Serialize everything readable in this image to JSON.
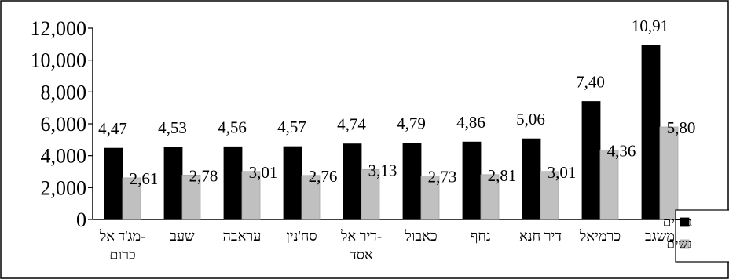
{
  "chart_data": {
    "type": "bar",
    "title": "",
    "xlabel": "",
    "ylabel": "",
    "ylim": [
      0,
      12000
    ],
    "yticks": [
      "0",
      "2,000",
      "4,000",
      "6,000",
      "8,000",
      "10,000",
      "12,000"
    ],
    "grid": false,
    "legend": "right",
    "categories": [
      [
        "מג'ד אל-",
        "כרום"
      ],
      [
        "שעב"
      ],
      [
        "עראבה"
      ],
      [
        "סח'נין"
      ],
      [
        "דיר אל-",
        "אסד"
      ],
      [
        "כאבול"
      ],
      [
        "נחף"
      ],
      [
        "דיר חנא"
      ],
      [
        "כרמיאל"
      ],
      [
        "משגב"
      ]
    ],
    "series": [
      {
        "name": "גברים",
        "color": "#000000",
        "values": [
          4470,
          4530,
          4560,
          4570,
          4740,
          4790,
          4860,
          5060,
          7400,
          10910
        ],
        "labels": [
          "4,47",
          "4,53",
          "4,56",
          "4,57",
          "4,74",
          "4,79",
          "4,86",
          "5,06",
          "7,40",
          "10,91"
        ]
      },
      {
        "name": "נשים",
        "color": "#c0c0c0",
        "values": [
          2610,
          2780,
          3010,
          2760,
          3130,
          2730,
          2810,
          3010,
          4360,
          5800
        ],
        "labels": [
          "2,61",
          "2,78",
          "3,01",
          "2,76",
          "3,13",
          "2,73",
          "2,81",
          "3,01",
          "4,36",
          "5,80"
        ]
      }
    ]
  }
}
